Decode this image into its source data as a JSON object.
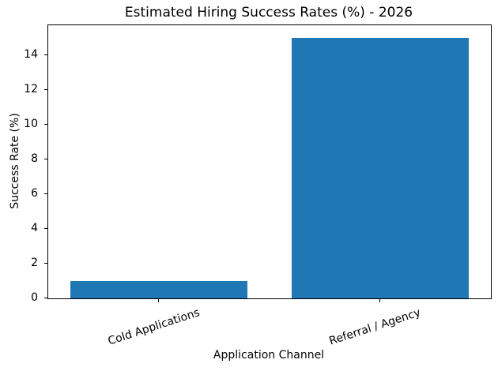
{
  "figure": {
    "background": "#ffffff",
    "text_color": "#000000"
  },
  "chart_data": {
    "type": "bar",
    "title": "Estimated Hiring Success Rates (%) - 2026",
    "xlabel": "Application Channel",
    "ylabel": "Success Rate (%)",
    "categories": [
      "Cold Applications",
      "Referral / Agency"
    ],
    "values": [
      1,
      15
    ],
    "bar_color": "#1f77b4",
    "yticks": [
      0,
      2,
      4,
      6,
      8,
      10,
      12,
      14
    ],
    "ylim": [
      0,
      15.75
    ],
    "bar_width_fraction": 0.8,
    "xtick_rotation_deg": 18,
    "grid": false,
    "legend_position": "none"
  }
}
